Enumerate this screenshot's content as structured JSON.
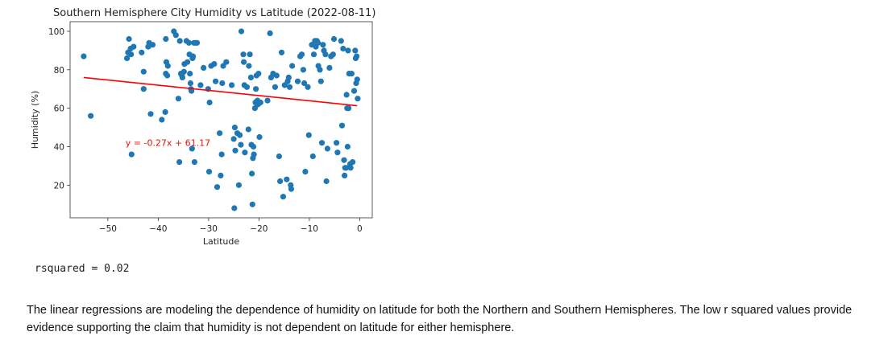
{
  "chart_data": {
    "type": "scatter",
    "title": "Southern Hemisphere City Humidity vs Latitude (2022-08-11)",
    "xlabel": "Latitude",
    "ylabel": "Humidity (%)",
    "xlim": [
      -57.5,
      2.5
    ],
    "ylim": [
      3,
      105
    ],
    "xticks": [
      -50,
      -40,
      -30,
      -20,
      -10,
      0
    ],
    "yticks": [
      20,
      40,
      60,
      80,
      100
    ],
    "grid": false,
    "point_color": "#1f77b4",
    "line_color": "#ff0000",
    "annotation": {
      "text": "y = -0.27x + 61.17",
      "x": -46.5,
      "y": 42
    },
    "regression": {
      "slope": -0.27,
      "intercept": 61.17,
      "x_range": [
        -54.8,
        -0.5
      ]
    },
    "points": [
      [
        -54.8,
        87
      ],
      [
        -53.4,
        56
      ],
      [
        -46.2,
        86
      ],
      [
        -46,
        89
      ],
      [
        -45.8,
        96
      ],
      [
        -45.5,
        91
      ],
      [
        -45.4,
        88
      ],
      [
        -45.3,
        36
      ],
      [
        -44.9,
        92
      ],
      [
        -43.3,
        89
      ],
      [
        -42.9,
        79
      ],
      [
        -42.9,
        70
      ],
      [
        -42,
        92
      ],
      [
        -41.8,
        94
      ],
      [
        -41.5,
        57
      ],
      [
        -41.4,
        93
      ],
      [
        -41.1,
        93
      ],
      [
        -39.3,
        54
      ],
      [
        -38.6,
        58
      ],
      [
        -38.5,
        96
      ],
      [
        -38.5,
        78
      ],
      [
        -38.4,
        84
      ],
      [
        -38.2,
        77
      ],
      [
        -38.1,
        82
      ],
      [
        -36.9,
        100
      ],
      [
        -36.5,
        98
      ],
      [
        -36,
        65
      ],
      [
        -35.8,
        32
      ],
      [
        -35.7,
        95
      ],
      [
        -35.5,
        78
      ],
      [
        -35.3,
        77
      ],
      [
        -35.2,
        76
      ],
      [
        -34.9,
        79
      ],
      [
        -34.8,
        83
      ],
      [
        -34.4,
        95
      ],
      [
        -34.2,
        84
      ],
      [
        -33.9,
        94
      ],
      [
        -33.8,
        88
      ],
      [
        -33.7,
        78
      ],
      [
        -33.6,
        73
      ],
      [
        -33.5,
        70
      ],
      [
        -33.4,
        69
      ],
      [
        -33.3,
        39
      ],
      [
        -33.2,
        86
      ],
      [
        -33.1,
        87
      ],
      [
        -32.9,
        94
      ],
      [
        -32.8,
        32
      ],
      [
        -32.6,
        94
      ],
      [
        -32.3,
        94
      ],
      [
        -31.6,
        72
      ],
      [
        -31,
        81
      ],
      [
        -30.1,
        70
      ],
      [
        -29.9,
        27
      ],
      [
        -29.8,
        63
      ],
      [
        -29.5,
        82
      ],
      [
        -28.9,
        83
      ],
      [
        -28.6,
        74
      ],
      [
        -28.3,
        19
      ],
      [
        -27.8,
        47
      ],
      [
        -27.6,
        25
      ],
      [
        -27.4,
        36
      ],
      [
        -27.3,
        73
      ],
      [
        -27.1,
        82
      ],
      [
        -26.5,
        84
      ],
      [
        -25.4,
        72
      ],
      [
        -25,
        44
      ],
      [
        -24.9,
        8
      ],
      [
        -24.8,
        50
      ],
      [
        -24.7,
        38
      ],
      [
        -24.3,
        47
      ],
      [
        -24,
        20
      ],
      [
        -23.8,
        46
      ],
      [
        -23.6,
        41
      ],
      [
        -23.5,
        100
      ],
      [
        -23.1,
        88
      ],
      [
        -23,
        84
      ],
      [
        -22.9,
        72
      ],
      [
        -22.8,
        37
      ],
      [
        -22.4,
        71
      ],
      [
        -22.1,
        49
      ],
      [
        -22,
        82
      ],
      [
        -21.8,
        88
      ],
      [
        -21.6,
        76
      ],
      [
        -21.5,
        41
      ],
      [
        -21.4,
        26
      ],
      [
        -21.3,
        10
      ],
      [
        -21.2,
        34
      ],
      [
        -21.1,
        40
      ],
      [
        -21,
        36
      ],
      [
        -20.8,
        60
      ],
      [
        -20.7,
        63
      ],
      [
        -20.6,
        70
      ],
      [
        -20.5,
        77
      ],
      [
        -20.3,
        64
      ],
      [
        -20.2,
        62
      ],
      [
        -20.1,
        78
      ],
      [
        -19.9,
        45
      ],
      [
        -19.7,
        63
      ],
      [
        -18.3,
        64
      ],
      [
        -17.8,
        99
      ],
      [
        -17.6,
        76
      ],
      [
        -17.2,
        78
      ],
      [
        -16.8,
        71
      ],
      [
        -16.5,
        77
      ],
      [
        -16,
        35
      ],
      [
        -15.8,
        22
      ],
      [
        -15.5,
        89
      ],
      [
        -15.2,
        14
      ],
      [
        -14.9,
        72
      ],
      [
        -14.5,
        23
      ],
      [
        -14.3,
        74
      ],
      [
        -14.1,
        76
      ],
      [
        -13.9,
        71
      ],
      [
        -13.7,
        20
      ],
      [
        -13.6,
        18
      ],
      [
        -13.4,
        82
      ],
      [
        -12.3,
        74
      ],
      [
        -11.8,
        87
      ],
      [
        -11.5,
        88
      ],
      [
        -11.2,
        80
      ],
      [
        -11,
        73
      ],
      [
        -10.8,
        27
      ],
      [
        -10.3,
        71
      ],
      [
        -10.1,
        46
      ],
      [
        -9.5,
        93
      ],
      [
        -9.3,
        35
      ],
      [
        -9.1,
        88
      ],
      [
        -8.9,
        95
      ],
      [
        -8.7,
        92
      ],
      [
        -8.5,
        95
      ],
      [
        -8.3,
        94
      ],
      [
        -8.2,
        82
      ],
      [
        -7.9,
        80
      ],
      [
        -7.7,
        74
      ],
      [
        -7.5,
        42
      ],
      [
        -7.3,
        93
      ],
      [
        -7.1,
        90
      ],
      [
        -6.8,
        88
      ],
      [
        -6.6,
        22
      ],
      [
        -6.4,
        39
      ],
      [
        -6,
        81
      ],
      [
        -5.7,
        87
      ],
      [
        -5.3,
        88
      ],
      [
        -5.1,
        96
      ],
      [
        -4.6,
        42
      ],
      [
        -4.4,
        37
      ],
      [
        -3.7,
        95
      ],
      [
        -3.5,
        51
      ],
      [
        -3.3,
        91
      ],
      [
        -3.1,
        33
      ],
      [
        -3,
        25
      ],
      [
        -2.9,
        29
      ],
      [
        -2.7,
        29
      ],
      [
        -2.6,
        67
      ],
      [
        -2.5,
        60
      ],
      [
        -2.4,
        40
      ],
      [
        -2.3,
        90
      ],
      [
        -2.2,
        60
      ],
      [
        -2.1,
        78
      ],
      [
        -1.9,
        31
      ],
      [
        -1.8,
        29
      ],
      [
        -1.6,
        78
      ],
      [
        -1.4,
        32
      ],
      [
        -0.9,
        90
      ],
      [
        -0.8,
        86
      ],
      [
        -0.7,
        73
      ],
      [
        -0.6,
        87
      ],
      [
        -0.5,
        75
      ],
      [
        -0.4,
        65
      ],
      [
        -1.1,
        69
      ]
    ]
  },
  "output": {
    "rsquared_text": "rsquared = 0.02",
    "note": "The linear regressions are modeling the dependence of humidity on latitude for both the Northern and Southern Hemispheres. The low r squared values provide evidence supporting the claim that humidity is not dependent on latitude for either hemisphere."
  }
}
